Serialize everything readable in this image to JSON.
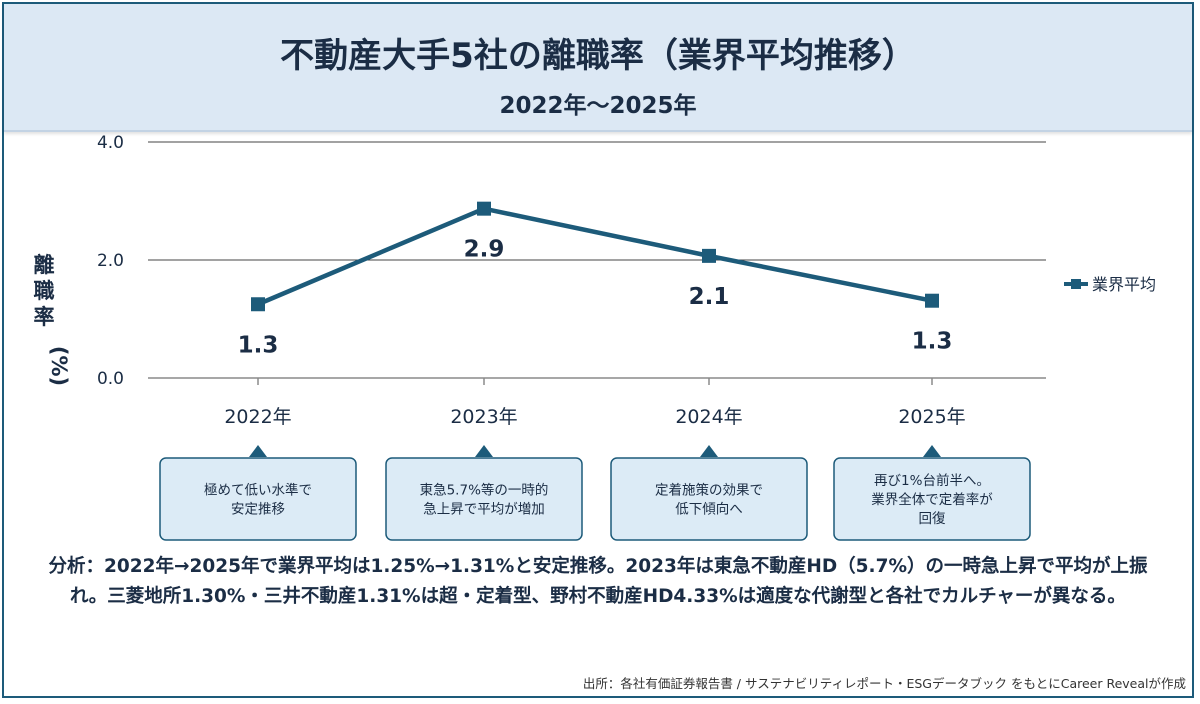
{
  "header": {
    "title": "不動産大手5社の離職率（業界平均推移）",
    "subtitle": "2022年〜2025年"
  },
  "chart_data": {
    "type": "line",
    "title": "不動産大手5社の離職率（業界平均推移）",
    "subtitle": "2022年〜2025年",
    "xlabel": "",
    "ylabel": "離職率（%）",
    "categories": [
      "2022年",
      "2023年",
      "2024年",
      "2025年"
    ],
    "series": [
      {
        "name": "業界平均",
        "values": [
          1.25,
          2.87,
          2.07,
          1.31
        ],
        "labels": [
          "1.3",
          "2.9",
          "2.1",
          "1.3"
        ],
        "color": "#1d5b7a"
      }
    ],
    "ylim": [
      0,
      4
    ],
    "yticks": [
      {
        "value": 0,
        "label": "0.0"
      },
      {
        "value": 2,
        "label": "2.0"
      },
      {
        "value": 4,
        "label": "4.0"
      }
    ],
    "grid": true,
    "legend": "right",
    "annotations": [
      {
        "category": "2022年",
        "lines": [
          "極めて低い水準で",
          "安定推移"
        ]
      },
      {
        "category": "2023年",
        "lines": [
          "東急5.7%等の一時的",
          "急上昇で平均が増加"
        ]
      },
      {
        "category": "2024年",
        "lines": [
          "定着施策の効果で",
          "低下傾向へ"
        ]
      },
      {
        "category": "2025年",
        "lines": [
          "再び1%台前半へ。",
          "業界全体で定着率が",
          "回復"
        ]
      }
    ]
  },
  "analysis": "分析：2022年→2025年で業界平均は1.25%→1.31%と安定推移。2023年は東急不動産HD（5.7%）の一時急上昇で平均が上振れ。三菱地所1.30%・三井不動産1.31%は超・定着型、野村不動産HD4.33%は適度な代謝型と各社でカルチャーが異なる。",
  "source": "出所：各社有価証券報告書 / サステナビリティレポート・ESGデータブック をもとにCareer Revealが作成",
  "colors": {
    "accent": "#1d5b7a",
    "header_bg": "#dce8f4",
    "annotation_bg": "#dcebf6",
    "text": "#1b2d45"
  }
}
